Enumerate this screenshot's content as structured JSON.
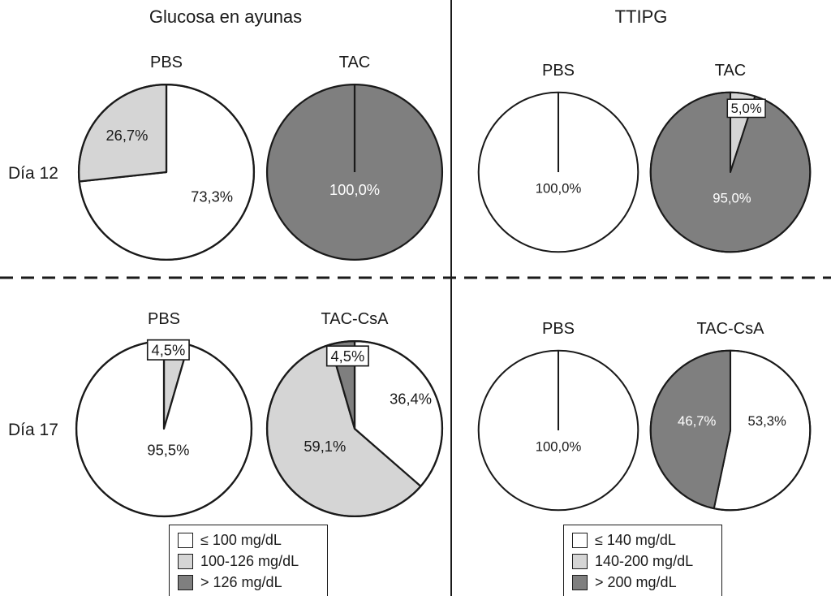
{
  "figure": {
    "columns": [
      {
        "title": "Glucosa en ayunas"
      },
      {
        "title": "TTIPG"
      }
    ],
    "rows": [
      {
        "label": "Día 12"
      },
      {
        "label": "Día 17"
      }
    ]
  },
  "colors": {
    "white": "#ffffff",
    "light_gray": "#d5d5d5",
    "dark_gray": "#7f7f7f",
    "outline": "#1a1a1a"
  },
  "chart_data": [
    {
      "type": "pie",
      "group": "Glucosa en ayunas",
      "row": "Día 12",
      "title": "PBS",
      "slices": [
        {
          "value": 73.3,
          "label": "73,3%",
          "category": "≤ 100 mg/dL",
          "color": "white",
          "text": "#1a1a1a",
          "boxed": false,
          "lx": 0.52,
          "ly": 0.28
        },
        {
          "value": 26.7,
          "label": "26,7%",
          "category": "100-126 mg/dL",
          "color": "light_gray",
          "text": "#1a1a1a",
          "boxed": false,
          "lx": -0.45,
          "ly": -0.42
        }
      ]
    },
    {
      "type": "pie",
      "group": "Glucosa en ayunas",
      "row": "Día 12",
      "title": "TAC",
      "slices": [
        {
          "value": 100.0,
          "label": "100,0%",
          "category": "> 126 mg/dL",
          "color": "dark_gray",
          "text": "#ffffff",
          "boxed": false,
          "lx": 0,
          "ly": 0.2
        }
      ]
    },
    {
      "type": "pie",
      "group": "TTIPG",
      "row": "Día 12",
      "title": "PBS",
      "slices": [
        {
          "value": 100.0,
          "label": "100,0%",
          "category": "≤ 140 mg/dL",
          "color": "white",
          "text": "#1a1a1a",
          "boxed": false,
          "lx": 0,
          "ly": 0.2
        }
      ]
    },
    {
      "type": "pie",
      "group": "TTIPG",
      "row": "Día 12",
      "title": "TAC",
      "slices": [
        {
          "value": 5.0,
          "label": "5,0%",
          "category": "140-200 mg/dL",
          "color": "light_gray",
          "text": "#1a1a1a",
          "boxed": true,
          "lx": 0.2,
          "ly": -0.8
        },
        {
          "value": 95.0,
          "label": "95,0%",
          "category": "> 200 mg/dL",
          "color": "dark_gray",
          "text": "#ffffff",
          "boxed": false,
          "lx": 0.02,
          "ly": 0.32
        }
      ]
    },
    {
      "type": "pie",
      "group": "Glucosa en ayunas",
      "row": "Día 17",
      "title": "PBS",
      "slices": [
        {
          "value": 4.5,
          "label": "4,5%",
          "category": "100-126 mg/dL",
          "color": "light_gray",
          "text": "#1a1a1a",
          "boxed": true,
          "lx": 0.05,
          "ly": -0.9
        },
        {
          "value": 95.5,
          "label": "95,5%",
          "category": "≤ 100 mg/dL",
          "color": "white",
          "text": "#1a1a1a",
          "boxed": false,
          "lx": 0.05,
          "ly": 0.24
        }
      ]
    },
    {
      "type": "pie",
      "group": "Glucosa en ayunas",
      "row": "Día 17",
      "title": "TAC-CsA",
      "slices": [
        {
          "value": 36.4,
          "label": "36,4%",
          "category": "≤ 100 mg/dL",
          "color": "white",
          "text": "#1a1a1a",
          "boxed": false,
          "lx": 0.64,
          "ly": -0.34
        },
        {
          "value": 59.1,
          "label": "59,1%",
          "category": "100-126 mg/dL",
          "color": "light_gray",
          "text": "#1a1a1a",
          "boxed": false,
          "lx": -0.34,
          "ly": 0.2
        },
        {
          "value": 4.5,
          "label": "4,5%",
          "category": "> 126 mg/dL",
          "color": "dark_gray",
          "text": "#1a1a1a",
          "boxed": true,
          "lx": -0.08,
          "ly": -0.83
        }
      ]
    },
    {
      "type": "pie",
      "group": "TTIPG",
      "row": "Día 17",
      "title": "PBS",
      "slices": [
        {
          "value": 100.0,
          "label": "100,0%",
          "category": "≤ 140 mg/dL",
          "color": "white",
          "text": "#1a1a1a",
          "boxed": false,
          "lx": 0,
          "ly": 0.2
        }
      ]
    },
    {
      "type": "pie",
      "group": "TTIPG",
      "row": "Día 17",
      "title": "TAC-CsA",
      "slices": [
        {
          "value": 53.3,
          "label": "53,3%",
          "category": "≤ 140 mg/dL",
          "color": "white",
          "text": "#1a1a1a",
          "boxed": false,
          "lx": 0.46,
          "ly": -0.12
        },
        {
          "value": 46.7,
          "label": "46,7%",
          "category": "> 200 mg/dL",
          "color": "dark_gray",
          "text": "#ffffff",
          "boxed": false,
          "lx": -0.42,
          "ly": -0.12
        }
      ]
    }
  ],
  "legends": [
    {
      "items": [
        {
          "swatch": "white",
          "label": "≤ 100 mg/dL"
        },
        {
          "swatch": "light_gray",
          "label": "100-126 mg/dL"
        },
        {
          "swatch": "dark_gray",
          "label": "> 126 mg/dL"
        }
      ]
    },
    {
      "items": [
        {
          "swatch": "white",
          "label": "≤ 140 mg/dL"
        },
        {
          "swatch": "light_gray",
          "label": "140-200 mg/dL"
        },
        {
          "swatch": "dark_gray",
          "label": "> 200 mg/dL"
        }
      ]
    }
  ]
}
